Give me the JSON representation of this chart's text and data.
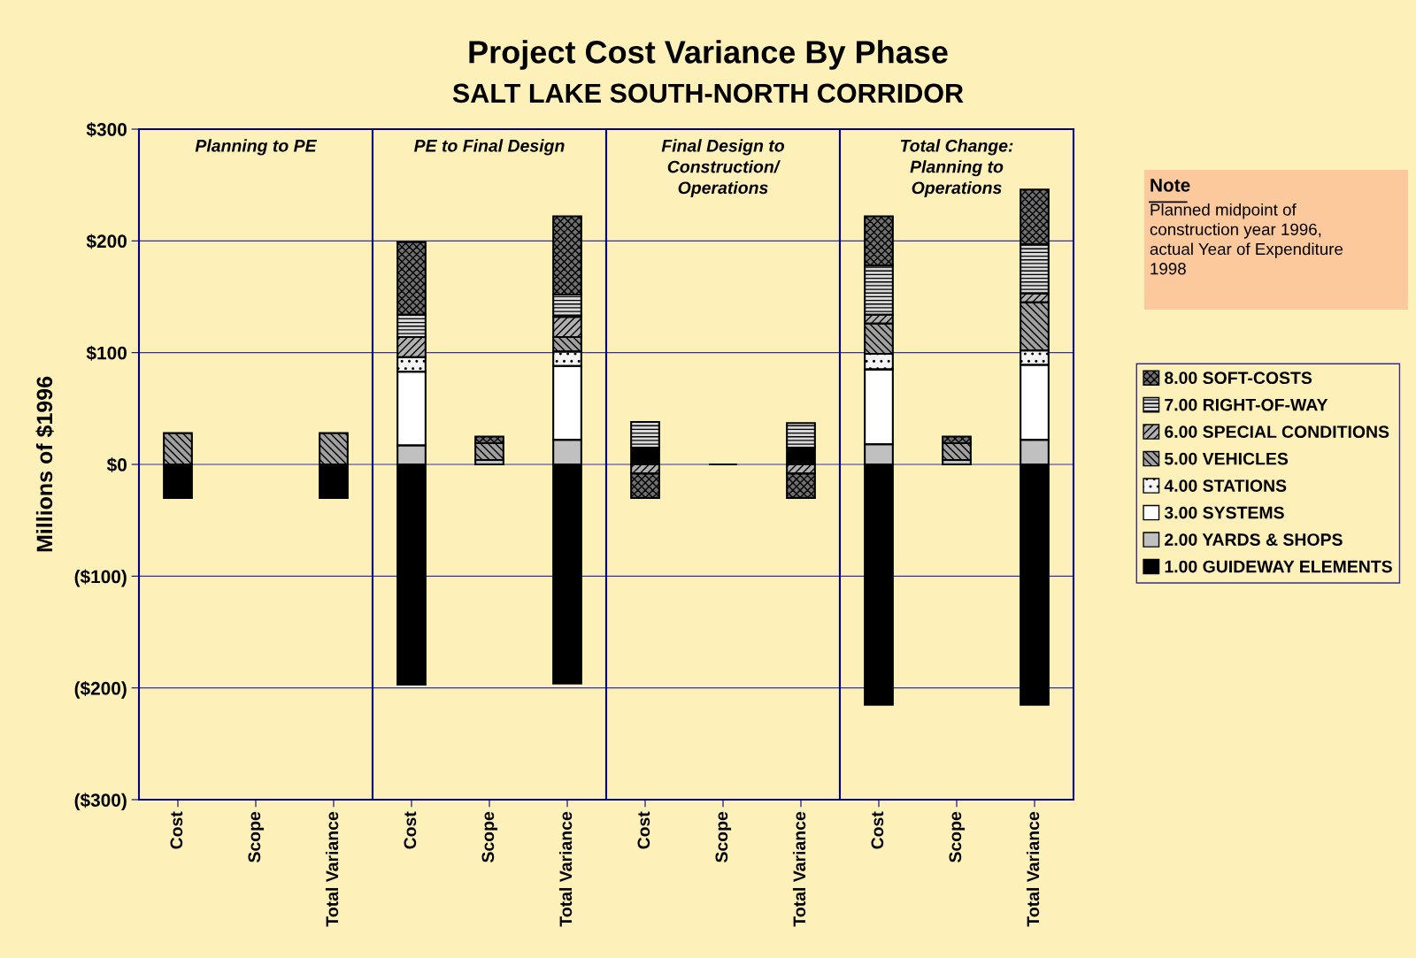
{
  "chart_data": [
    {
      "type": "bar",
      "stacked": true,
      "title": "Planning to PE",
      "annotations": [
        "Project Cost Variance By Phase",
        "SALT LAKE SOUTH-NORTH CORRIDOR"
      ],
      "ylabel": "Millions of $1996",
      "categories": [
        "Cost",
        "Scope",
        "Total Variance"
      ],
      "ylim": [
        -300,
        300
      ],
      "yticks": [
        {
          "value": -300,
          "label": "($300)"
        },
        {
          "value": -200,
          "label": "($200)"
        },
        {
          "value": -100,
          "label": "($100)"
        },
        {
          "value": 0,
          "label": "$0"
        },
        {
          "value": 100,
          "label": "$100"
        },
        {
          "value": 200,
          "label": "$200"
        },
        {
          "value": 300,
          "label": "$300"
        }
      ],
      "grid": "y",
      "legend": false,
      "series": [
        {
          "color": "#000000",
          "values": [
            -30,
            null,
            -30
          ]
        },
        {
          "color": "#c0c0c0",
          "values": [
            null,
            null,
            null
          ]
        },
        {
          "color": "#ffffff",
          "values": [
            null,
            null,
            null
          ]
        },
        {
          "color": "#f4f4f4",
          "values": [
            null,
            null,
            null
          ]
        },
        {
          "color": "#a0a0a0",
          "values": [
            28,
            null,
            28
          ]
        },
        {
          "color": "#b0b0b0",
          "values": [
            null,
            null,
            null
          ]
        },
        {
          "color": "#d8d8d8",
          "values": [
            null,
            null,
            null
          ]
        },
        {
          "color": "#707070",
          "values": [
            null,
            null,
            null
          ]
        }
      ]
    },
    {
      "type": "bar",
      "stacked": true,
      "title": "PE to Final Design",
      "categories": [
        "Cost",
        "Scope",
        "Total Variance"
      ],
      "ylim": [
        -300,
        300
      ],
      "yticks": [
        -300,
        -200,
        -100,
        0,
        100,
        200,
        300
      ],
      "tick_labels": "x",
      "grid": "y",
      "legend": false,
      "series": [
        {
          "color": "#000000",
          "values": [
            -197,
            null,
            -196
          ]
        },
        {
          "color": "#c0c0c0",
          "values": [
            17,
            4,
            22
          ]
        },
        {
          "color": "#ffffff",
          "values": [
            66,
            null,
            66
          ]
        },
        {
          "color": "#f4f4f4",
          "values": [
            13,
            null,
            13
          ]
        },
        {
          "color": "#a0a0a0",
          "values": [
            null,
            15,
            13
          ]
        },
        {
          "color": "#b0b0b0",
          "values": [
            18,
            null,
            18
          ]
        },
        {
          "color": "#d8d8d8",
          "values": [
            20,
            null,
            20
          ]
        },
        {
          "color": "#707070",
          "values": [
            65,
            6,
            70
          ]
        }
      ]
    },
    {
      "type": "bar",
      "stacked": true,
      "title": "Final Design to\nConstruction/\nOperations",
      "categories": [
        "Cost",
        "Scope",
        "Total Variance"
      ],
      "ylim": [
        -300,
        300
      ],
      "yticks": [
        -300,
        -200,
        -100,
        0,
        100,
        200,
        300
      ],
      "tick_labels": "x",
      "grid": "y",
      "legend": false,
      "series": [
        {
          "color": "#000000",
          "values": [
            15,
            0,
            15
          ]
        },
        {
          "color": "#c0c0c0",
          "values": [
            null,
            null,
            null
          ]
        },
        {
          "color": "#ffffff",
          "values": [
            null,
            null,
            null
          ]
        },
        {
          "color": "#f4f4f4",
          "values": [
            null,
            null,
            null
          ]
        },
        {
          "color": "#a0a0a0",
          "values": [
            null,
            null,
            null
          ]
        },
        {
          "color": "#b0b0b0",
          "values": [
            -8,
            null,
            -8
          ]
        },
        {
          "color": "#d8d8d8",
          "values": [
            23,
            null,
            22
          ]
        },
        {
          "color": "#707070",
          "values": [
            -22,
            null,
            -22
          ]
        }
      ]
    },
    {
      "type": "bar",
      "stacked": true,
      "title": "Total Change:\nPlanning to\nOperations",
      "annotations": [
        "Note",
        "Planned midpoint of\nconstruction year 1996,\nactual Year of Expenditure\n1998"
      ],
      "categories": [
        "Cost",
        "Scope",
        "Total Variance"
      ],
      "ylim": [
        -300,
        300
      ],
      "yticks": [
        -300,
        -200,
        -100,
        0,
        100,
        200,
        300
      ],
      "tick_labels": "x",
      "grid": "y",
      "legend": "right",
      "series": [
        {
          "name": "1.00 GUIDEWAY ELEMENTS",
          "color": "#000000",
          "values": [
            -215,
            null,
            -215
          ]
        },
        {
          "name": "2.00 YARDS & SHOPS",
          "color": "#c0c0c0",
          "values": [
            18,
            4,
            22
          ]
        },
        {
          "name": "3.00 SYSTEMS",
          "color": "#ffffff",
          "values": [
            67,
            null,
            67
          ]
        },
        {
          "name": "4.00 STATIONS",
          "color": "#f4f4f4",
          "values": [
            14,
            null,
            13
          ]
        },
        {
          "name": "5.00 VEHICLES",
          "color": "#a0a0a0",
          "values": [
            27,
            15,
            43
          ]
        },
        {
          "name": "6.00 SPECIAL CONDITIONS",
          "color": "#b0b0b0",
          "values": [
            8,
            null,
            8
          ]
        },
        {
          "name": "7.00 RIGHT-OF-WAY",
          "color": "#d8d8d8",
          "values": [
            44,
            null,
            44
          ]
        },
        {
          "name": "8.00 SOFT-COSTS",
          "color": "#707070",
          "values": [
            44,
            6,
            49
          ]
        }
      ]
    }
  ]
}
